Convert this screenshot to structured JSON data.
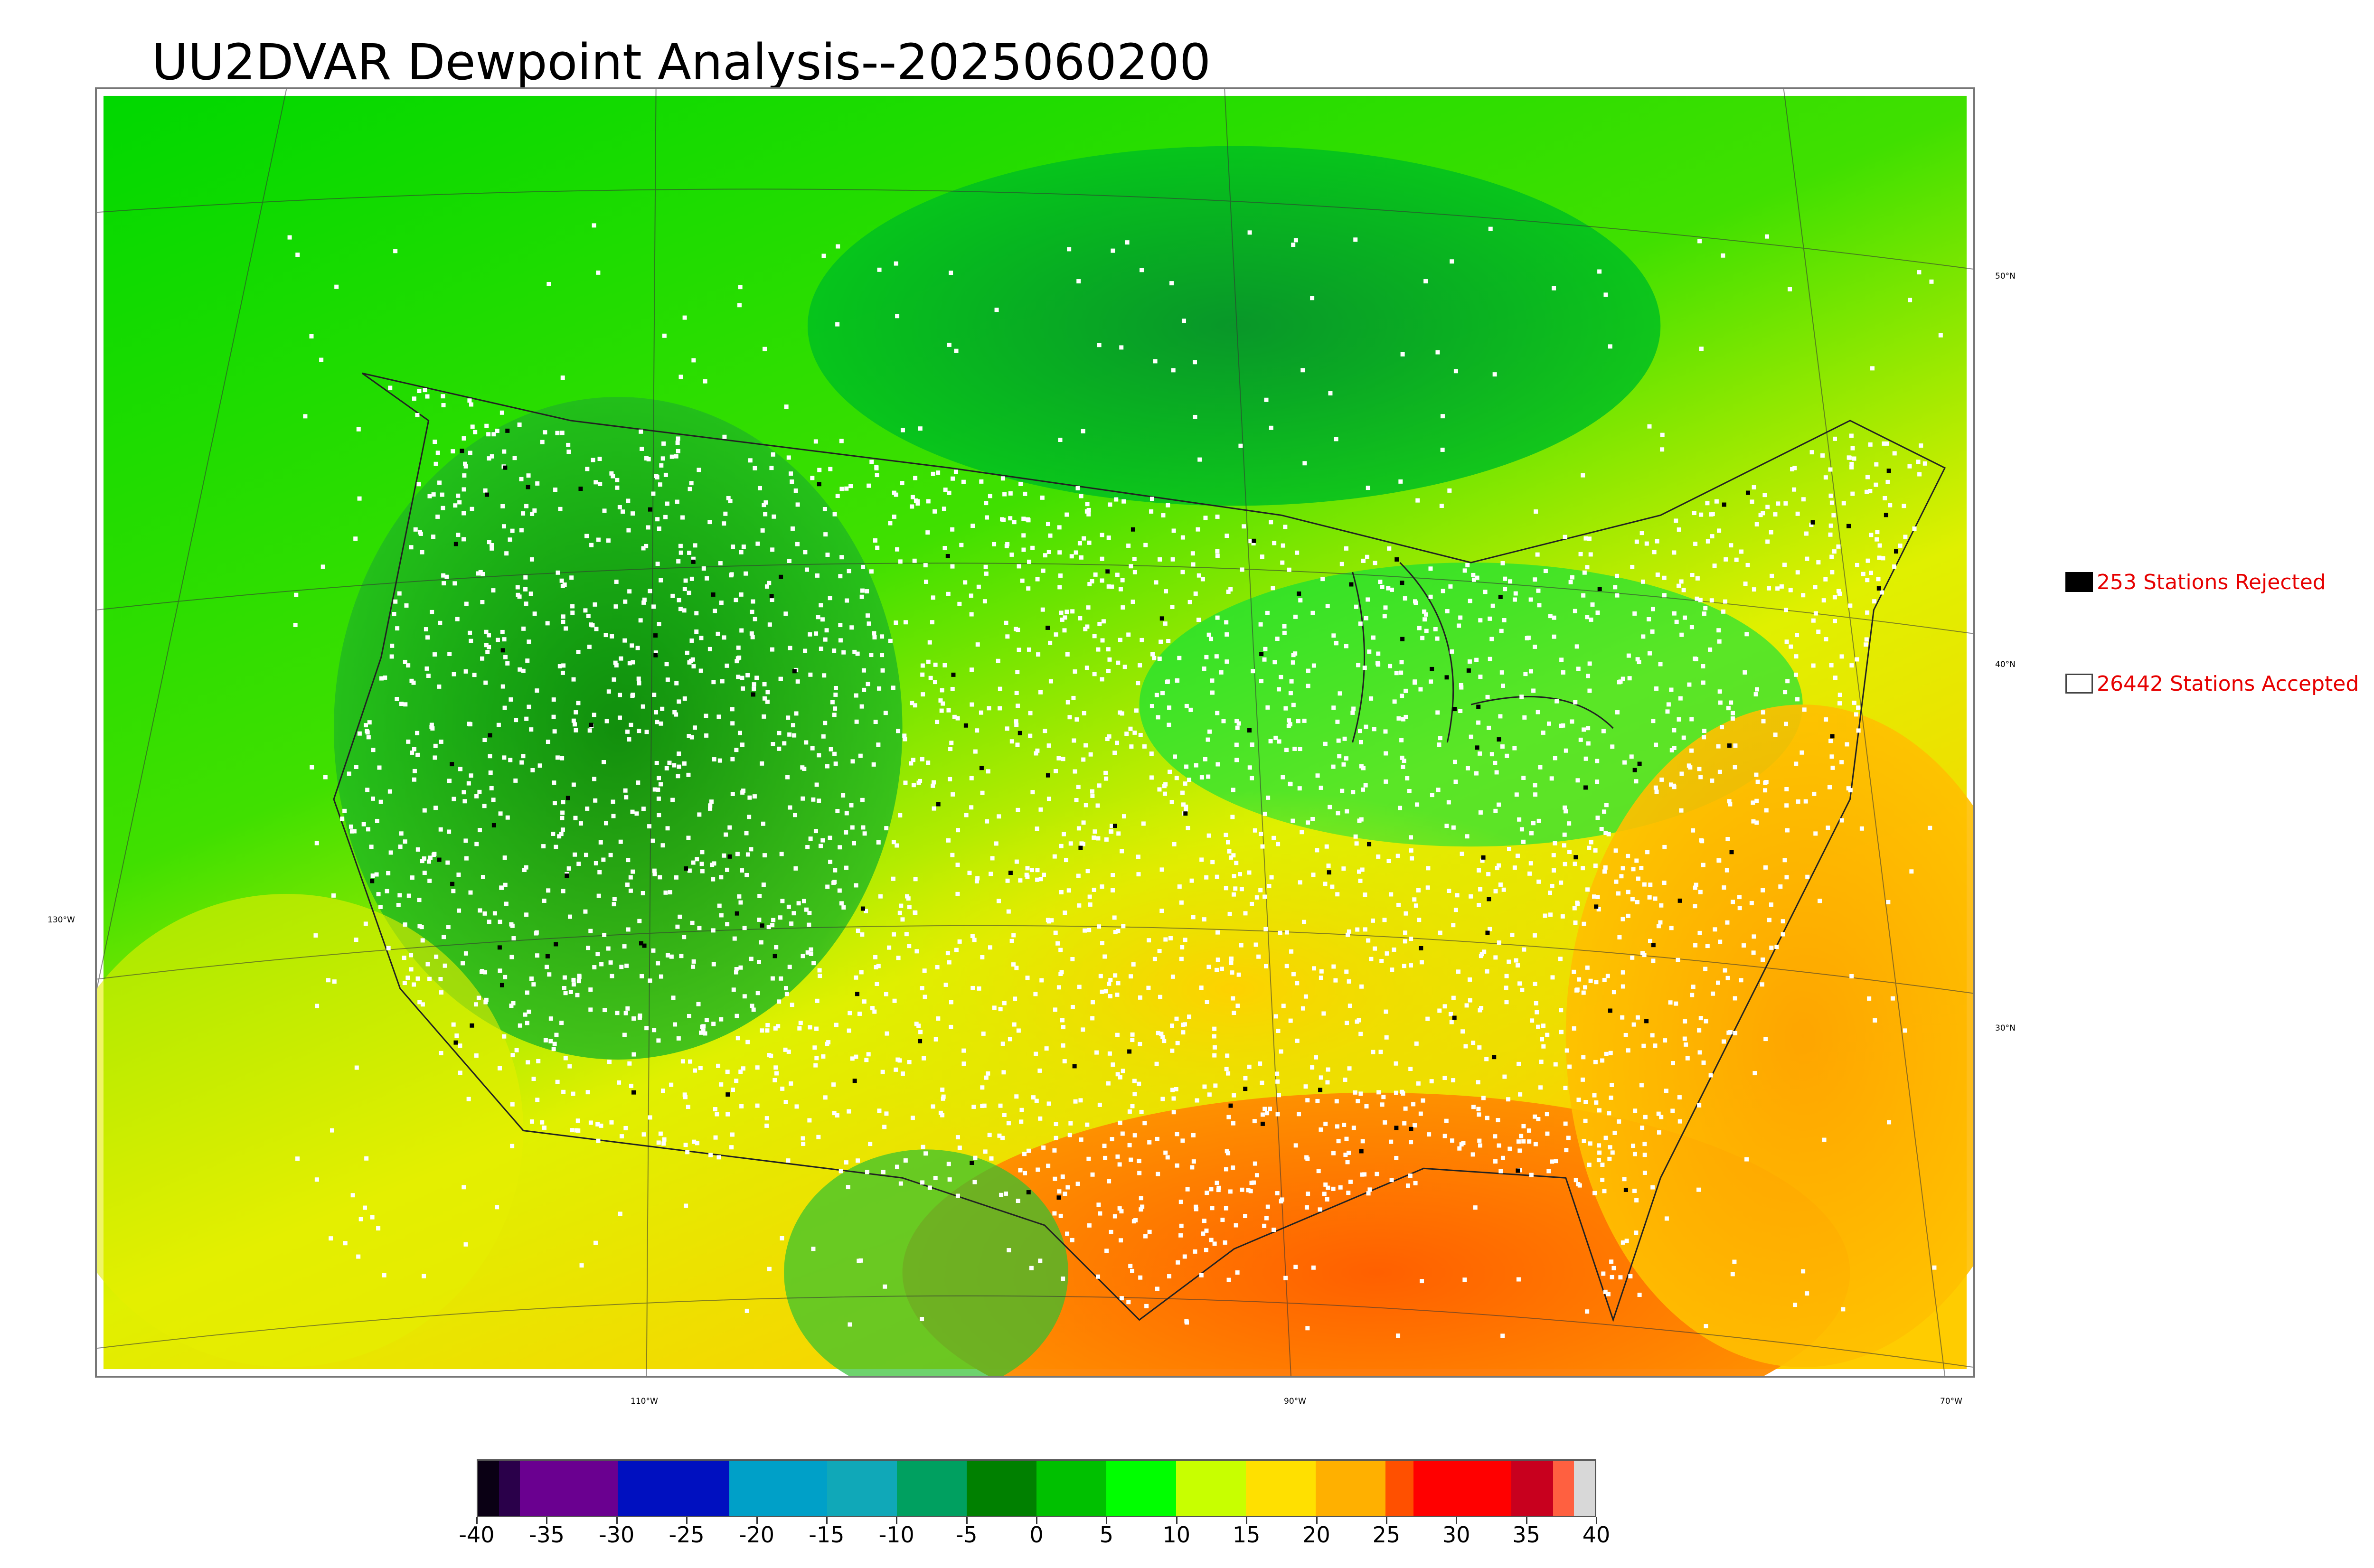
{
  "title": "UU2DVAR Dewpoint Analysis--2025060200",
  "map": {
    "graticule_labels": {
      "lat": [
        "50°N",
        "40°N",
        "30°N"
      ],
      "lon": [
        "130°W",
        "110°W",
        "90°W",
        "70°W"
      ]
    },
    "station_markers": {
      "accepted_color": "#ffffff",
      "rejected_color": "#000000"
    }
  },
  "legend": {
    "rejected": {
      "count": 253,
      "label": "253 Stations Rejected",
      "swatch_color": "#000000"
    },
    "accepted": {
      "count": 26442,
      "label": "26442 Stations Accepted",
      "swatch_color": "#ffffff"
    }
  },
  "colorbar": {
    "min": -40,
    "max": 40,
    "tick_labels": [
      "-40",
      "-35",
      "-30",
      "-25",
      "-20",
      "-15",
      "-10",
      "-5",
      "0",
      "5",
      "10",
      "15",
      "20",
      "25",
      "30",
      "35",
      "40"
    ],
    "color_stops": [
      {
        "from": -40,
        "to": -38.5,
        "color": "#0a0014"
      },
      {
        "from": -38.5,
        "to": -37,
        "color": "#2a004a"
      },
      {
        "from": -37,
        "to": -30,
        "color": "#6a0090"
      },
      {
        "from": -30,
        "to": -22,
        "color": "#0010c0"
      },
      {
        "from": -22,
        "to": -15,
        "color": "#00a0c8"
      },
      {
        "from": -15,
        "to": -10,
        "color": "#10a8b8"
      },
      {
        "from": -10,
        "to": -5,
        "color": "#00a060"
      },
      {
        "from": -5,
        "to": 0,
        "color": "#008000"
      },
      {
        "from": 0,
        "to": 5,
        "color": "#00c000"
      },
      {
        "from": 5,
        "to": 10,
        "color": "#00ff00"
      },
      {
        "from": 10,
        "to": 15,
        "color": "#c8ff00"
      },
      {
        "from": 15,
        "to": 20,
        "color": "#ffe000"
      },
      {
        "from": 20,
        "to": 25,
        "color": "#ffb000"
      },
      {
        "from": 25,
        "to": 27,
        "color": "#ff5000"
      },
      {
        "from": 27,
        "to": 34,
        "color": "#ff0000"
      },
      {
        "from": 34,
        "to": 37,
        "color": "#c8001e"
      },
      {
        "from": 37,
        "to": 38.5,
        "color": "#ff6040"
      },
      {
        "from": 38.5,
        "to": 40,
        "color": "#d8d8d8"
      }
    ]
  }
}
